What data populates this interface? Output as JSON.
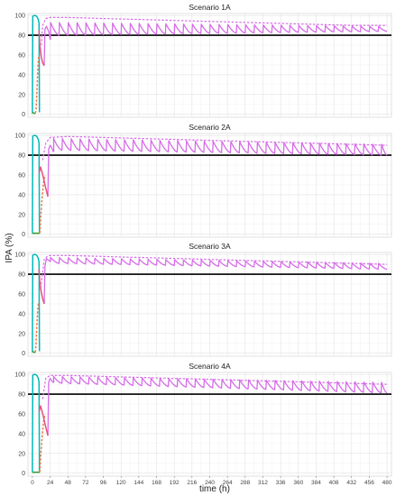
{
  "figure": {
    "ylabel": "IPA (%)",
    "xlabel": "time (h)"
  },
  "chart_data": [
    {
      "type": "line",
      "title": "Scenario 1A",
      "xlim": [
        -6,
        486
      ],
      "ylim": [
        -3,
        102
      ],
      "x_ticks": [
        0,
        24,
        48,
        72,
        96,
        120,
        144,
        168,
        192,
        216,
        240,
        264,
        288,
        312,
        336,
        360,
        384,
        408,
        432,
        456,
        480
      ],
      "y_ticks": [
        0,
        20,
        40,
        60,
        80,
        100
      ],
      "threshold": 80,
      "grid": true,
      "series": [
        {
          "color": "#00b8b8",
          "style": "solid",
          "x": [
            0,
            0.5,
            2,
            4,
            6,
            8,
            9,
            9.5
          ],
          "y": [
            1,
            99,
            100,
            100,
            99,
            96,
            92,
            2
          ]
        },
        {
          "color": "#2ca02c",
          "style": "solid",
          "x": [
            0,
            2,
            4
          ],
          "y": [
            2,
            1,
            1
          ]
        },
        {
          "color": "#f07848",
          "style": "dashed",
          "x": [
            4,
            5,
            6,
            7,
            8,
            9
          ],
          "y": [
            1,
            5,
            20,
            40,
            55,
            60
          ]
        },
        {
          "color": "#e8507a",
          "style": "solid",
          "x": [
            9,
            10,
            12,
            14,
            16
          ],
          "y": [
            85,
            70,
            58,
            52,
            49
          ]
        }
      ],
      "magenta_first": {
        "x": [
          16,
          17,
          19,
          22,
          24,
          24.5
        ],
        "y": [
          50,
          86,
          89,
          84,
          76,
          76
        ]
      },
      "magenta_solid": {
        "first_dose": 24,
        "interval": 12,
        "doses": 38,
        "peak_start": 93,
        "peak_end": 89,
        "trough_start": 80,
        "trough_end": 84
      },
      "magenta_dashed": {
        "x": [
          12,
          14,
          18,
          24,
          48,
          96,
          144,
          192,
          240,
          288,
          336,
          384,
          432,
          480
        ],
        "y": [
          70,
          90,
          97,
          98,
          98,
          97,
          96,
          95,
          94,
          93,
          92,
          91,
          90,
          90
        ]
      }
    },
    {
      "type": "line",
      "title": "Scenario 2A",
      "xlim": [
        -6,
        486
      ],
      "ylim": [
        -3,
        102
      ],
      "x_ticks": [
        0,
        24,
        48,
        72,
        96,
        120,
        144,
        168,
        192,
        216,
        240,
        264,
        288,
        312,
        336,
        360,
        384,
        408,
        432,
        456,
        480
      ],
      "y_ticks": [
        0,
        20,
        40,
        60,
        80,
        100
      ],
      "threshold": 80,
      "grid": true,
      "series": [
        {
          "color": "#00b8b8",
          "style": "solid",
          "x": [
            0,
            0.5,
            2,
            4,
            6,
            8,
            9,
            9.5
          ],
          "y": [
            1,
            99,
            100,
            100,
            99,
            96,
            92,
            2
          ]
        },
        {
          "color": "#2ca02c",
          "style": "solid",
          "x": [
            0,
            2,
            4,
            8,
            10
          ],
          "y": [
            1,
            1,
            1,
            1,
            1
          ]
        },
        {
          "color": "#f07848",
          "style": "dashed",
          "x": [
            10,
            11,
            13,
            15,
            17
          ],
          "y": [
            1,
            15,
            35,
            52,
            60
          ]
        },
        {
          "color": "#e8507a",
          "style": "solid",
          "x": [
            9,
            11,
            13,
            15,
            17,
            19,
            21
          ],
          "y": [
            62,
            68,
            63,
            57,
            50,
            44,
            38
          ]
        }
      ],
      "magenta_first": {
        "x": [
          21,
          22,
          24,
          26,
          28,
          29
        ],
        "y": [
          38,
          86,
          90,
          88,
          84,
          84
        ]
      },
      "magenta_solid": {
        "first_dose": 28,
        "interval": 12,
        "doses": 38,
        "peak_start": 97,
        "peak_end": 91,
        "trough_start": 85,
        "trough_end": 80
      },
      "magenta_dashed": {
        "x": [
          14,
          18,
          24,
          48,
          96,
          144,
          192,
          240,
          288,
          336,
          384,
          432,
          480
        ],
        "y": [
          75,
          92,
          98,
          99,
          98,
          97,
          96,
          95,
          94,
          93,
          92,
          91,
          90
        ]
      }
    },
    {
      "type": "line",
      "title": "Scenario 3A",
      "xlim": [
        -6,
        486
      ],
      "ylim": [
        -3,
        102
      ],
      "x_ticks": [
        0,
        24,
        48,
        72,
        96,
        120,
        144,
        168,
        192,
        216,
        240,
        264,
        288,
        312,
        336,
        360,
        384,
        408,
        432,
        456,
        480
      ],
      "y_ticks": [
        0,
        20,
        40,
        60,
        80,
        100
      ],
      "threshold": 80,
      "grid": true,
      "series": [
        {
          "color": "#00b8b8",
          "style": "solid",
          "x": [
            0,
            0.5,
            2,
            4,
            6,
            8,
            9,
            9.5
          ],
          "y": [
            1,
            99,
            100,
            100,
            99,
            96,
            92,
            2
          ]
        },
        {
          "color": "#2ca02c",
          "style": "solid",
          "x": [
            0,
            2,
            4
          ],
          "y": [
            2,
            1,
            1
          ]
        },
        {
          "color": "#f07848",
          "style": "dashed",
          "x": [
            4,
            5,
            6,
            7,
            8,
            9
          ],
          "y": [
            1,
            10,
            28,
            42,
            50,
            52
          ]
        },
        {
          "color": "#e8507a",
          "style": "solid",
          "x": [
            9,
            10,
            12,
            14,
            16
          ],
          "y": [
            85,
            72,
            62,
            55,
            50
          ]
        }
      ],
      "magenta_first": {
        "x": [
          16,
          17,
          19,
          22,
          24,
          24.5
        ],
        "y": [
          50,
          88,
          96,
          94,
          93,
          93
        ]
      },
      "magenta_solid": {
        "first_dose": 24,
        "interval": 12,
        "doses": 38,
        "peak_start": 97,
        "peak_end": 91,
        "trough_start": 91,
        "trough_end": 85
      },
      "magenta_dashed": {
        "x": [
          12,
          16,
          20,
          24,
          48,
          96,
          144,
          192,
          240,
          288,
          336,
          384,
          432,
          480
        ],
        "y": [
          70,
          95,
          98,
          99,
          99,
          98,
          97,
          96,
          95,
          94,
          93,
          92,
          91,
          90
        ]
      }
    },
    {
      "type": "line",
      "title": "Scenario 4A",
      "xlim": [
        -6,
        486
      ],
      "ylim": [
        -3,
        102
      ],
      "x_ticks": [
        0,
        24,
        48,
        72,
        96,
        120,
        144,
        168,
        192,
        216,
        240,
        264,
        288,
        312,
        336,
        360,
        384,
        408,
        432,
        456,
        480
      ],
      "y_ticks": [
        0,
        20,
        40,
        60,
        80,
        100
      ],
      "threshold": 80,
      "grid": true,
      "series": [
        {
          "color": "#00b8b8",
          "style": "solid",
          "x": [
            0,
            0.5,
            2,
            4,
            6,
            8,
            9,
            9.5
          ],
          "y": [
            1,
            99,
            100,
            100,
            99,
            96,
            92,
            2
          ]
        },
        {
          "color": "#2ca02c",
          "style": "solid",
          "x": [
            0,
            2,
            4,
            8,
            10
          ],
          "y": [
            1,
            1,
            1,
            1,
            1
          ]
        },
        {
          "color": "#f07848",
          "style": "dashed",
          "x": [
            10,
            11,
            13,
            15,
            17
          ],
          "y": [
            1,
            15,
            35,
            52,
            60
          ]
        },
        {
          "color": "#e8507a",
          "style": "solid",
          "x": [
            9,
            11,
            13,
            15,
            17,
            19,
            21
          ],
          "y": [
            62,
            68,
            63,
            57,
            50,
            44,
            38
          ]
        }
      ],
      "magenta_first": {
        "x": [
          21,
          22,
          24,
          26,
          28,
          29
        ],
        "y": [
          38,
          92,
          96,
          94,
          92,
          92
        ]
      },
      "magenta_solid": {
        "first_dose": 28,
        "interval": 12,
        "doses": 38,
        "peak_start": 98,
        "peak_end": 92,
        "trough_start": 91,
        "trough_end": 81
      },
      "magenta_dashed": {
        "x": [
          14,
          18,
          24,
          48,
          96,
          144,
          192,
          240,
          288,
          336,
          384,
          432,
          480
        ],
        "y": [
          75,
          96,
          99,
          99,
          98,
          97,
          96,
          95,
          94,
          93,
          92,
          91,
          90
        ]
      }
    }
  ]
}
